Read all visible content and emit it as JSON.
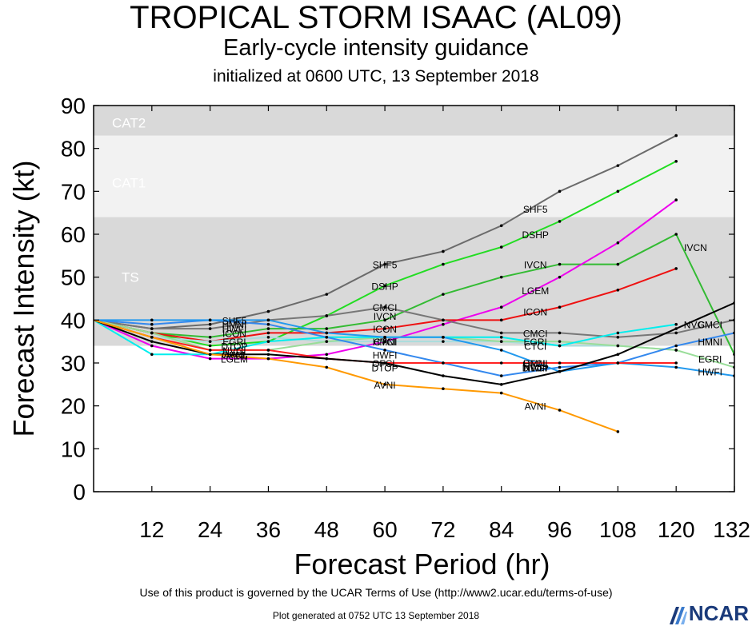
{
  "header": {
    "title": "TROPICAL STORM ISAAC (AL09)",
    "subtitle": "Early-cycle intensity guidance",
    "init": "initialized at 0600 UTC, 13 September 2018"
  },
  "footer": {
    "terms": "Use of this product is governed by the UCAR Terms of Use (http://www2.ucar.edu/terms-of-use)",
    "generated": "Plot generated at 0752 UTC   13 September 2018",
    "logo": "NCAR"
  },
  "chart_data": {
    "type": "line",
    "xlabel": "Forecast Period (hr)",
    "ylabel": "Forecast Intensity (kt)",
    "xlim": [
      0,
      132
    ],
    "ylim": [
      0,
      90
    ],
    "xticks": [
      12,
      24,
      36,
      48,
      60,
      72,
      84,
      96,
      108,
      120,
      132
    ],
    "yticks": [
      0,
      10,
      20,
      30,
      40,
      50,
      60,
      70,
      80,
      90
    ],
    "bands": [
      {
        "label": "TS",
        "from": 34,
        "to": 64,
        "color": "#d9d9d9"
      },
      {
        "label": "CAT1",
        "from": 64,
        "to": 83,
        "color": "#f2f2f2"
      },
      {
        "label": "CAT2",
        "from": 83,
        "to": 90,
        "color": "#d9d9d9"
      }
    ],
    "series": [
      {
        "name": "SHF5",
        "color": "#6b6b6b",
        "x": [
          0,
          12,
          24,
          36,
          48,
          60,
          72,
          84,
          96,
          108,
          120
        ],
        "y": [
          40,
          38,
          39,
          42,
          46,
          53,
          56,
          62,
          70,
          76,
          83
        ]
      },
      {
        "name": "DSHP",
        "color": "#22dd22",
        "x": [
          0,
          12,
          24,
          36,
          48,
          60,
          72,
          84,
          96,
          108,
          120
        ],
        "y": [
          40,
          37,
          34,
          35,
          41,
          48,
          53,
          57,
          63,
          70,
          77
        ]
      },
      {
        "name": "IVCN",
        "color": "#33bb33",
        "x": [
          0,
          12,
          24,
          36,
          48,
          60,
          72,
          84,
          96,
          108,
          120,
          132
        ],
        "y": [
          40,
          37,
          36,
          38,
          38,
          40,
          46,
          50,
          53,
          53,
          60,
          32
        ]
      },
      {
        "name": "LGEM",
        "color": "#ee00ee",
        "x": [
          0,
          12,
          24,
          36,
          48,
          60,
          72,
          84,
          96,
          108,
          120
        ],
        "y": [
          40,
          34,
          31,
          31,
          32,
          35,
          39,
          43,
          50,
          58,
          68
        ]
      },
      {
        "name": "ICON",
        "color": "#ee1111",
        "x": [
          0,
          12,
          24,
          36,
          48,
          60,
          72,
          84,
          96,
          108,
          120
        ],
        "y": [
          40,
          37,
          35,
          37,
          37,
          38,
          40,
          40,
          43,
          47,
          52
        ]
      },
      {
        "name": "CMCI",
        "color": "#777777",
        "x": [
          0,
          12,
          24,
          36,
          48,
          60,
          72,
          84,
          96,
          108,
          120,
          132
        ],
        "y": [
          40,
          38,
          38,
          40,
          41,
          43,
          40,
          37,
          37,
          36,
          37,
          40
        ]
      },
      {
        "name": "CTCI",
        "color": "#aadddd",
        "x": [
          0,
          12,
          24,
          36,
          48,
          60,
          72,
          84,
          96,
          108,
          120
        ],
        "y": [
          40,
          36,
          35,
          36,
          35,
          35,
          35,
          35,
          34,
          34,
          33
        ]
      },
      {
        "name": "EGRI",
        "color": "#99dd99",
        "x": [
          0,
          12,
          24,
          36,
          48,
          60,
          72,
          84,
          96,
          108,
          120,
          132
        ],
        "y": [
          40,
          37,
          33,
          33,
          35,
          36,
          36,
          35,
          35,
          34,
          33,
          29
        ]
      },
      {
        "name": "NVGI",
        "color": "#00eeee",
        "x": [
          0,
          12,
          24,
          36,
          48,
          60,
          72,
          84,
          96,
          108,
          120
        ],
        "y": [
          40,
          32,
          32,
          35,
          36,
          36,
          36,
          36,
          34,
          37,
          39
        ]
      },
      {
        "name": "HMNI",
        "color": "#3388ee",
        "x": [
          0,
          12,
          24,
          36,
          48,
          60,
          72,
          84,
          96,
          108,
          120,
          132
        ],
        "y": [
          40,
          39,
          40,
          39,
          36,
          33,
          30,
          27,
          29,
          30,
          34,
          37
        ]
      },
      {
        "name": "HWFI",
        "color": "#2299ee",
        "x": [
          0,
          12,
          24,
          36,
          48,
          60,
          72,
          84,
          96,
          108,
          120,
          132
        ],
        "y": [
          40,
          40,
          40,
          40,
          37,
          36,
          36,
          33,
          28,
          30,
          29,
          27
        ]
      },
      {
        "name": "OFCL",
        "color": "#ff2222",
        "x": [
          0,
          12,
          24,
          36,
          48,
          60,
          72,
          84,
          96,
          108,
          120
        ],
        "y": [
          40,
          36,
          33,
          33,
          31,
          30,
          30,
          30,
          30,
          30,
          30
        ]
      },
      {
        "name": "DTOP",
        "color": "#000000",
        "x": [
          0,
          12,
          24,
          36,
          48,
          60,
          72,
          84,
          96,
          108,
          120,
          132
        ],
        "y": [
          40,
          35,
          32,
          32,
          31,
          30,
          27,
          25,
          28,
          32,
          38,
          44
        ]
      },
      {
        "name": "AVNI",
        "color": "#ff9900",
        "x": [
          0,
          12,
          24,
          36,
          48,
          60,
          72,
          84,
          96,
          108
        ],
        "y": [
          40,
          36,
          32,
          31,
          29,
          25,
          24,
          23,
          19,
          14
        ]
      }
    ],
    "line_labels": [
      {
        "text": "SHF5",
        "x": 29,
        "y": 40
      },
      {
        "text": "SHF5",
        "x": 60,
        "y": 53
      },
      {
        "text": "SHF5",
        "x": 91,
        "y": 66
      },
      {
        "text": "DSHP",
        "x": 60,
        "y": 48
      },
      {
        "text": "DSHP",
        "x": 91,
        "y": 60
      },
      {
        "text": "IVCN",
        "x": 60,
        "y": 41
      },
      {
        "text": "IVCN",
        "x": 91,
        "y": 53
      },
      {
        "text": "IVCN",
        "x": 124,
        "y": 57
      },
      {
        "text": "LGEM",
        "x": 29,
        "y": 31
      },
      {
        "text": "LGEM",
        "x": 91,
        "y": 47
      },
      {
        "text": "ICON",
        "x": 29,
        "y": 37
      },
      {
        "text": "ICON",
        "x": 60,
        "y": 38
      },
      {
        "text": "ICON",
        "x": 91,
        "y": 42
      },
      {
        "text": "CMCI",
        "x": 60,
        "y": 43
      },
      {
        "text": "CMCI",
        "x": 91,
        "y": 37
      },
      {
        "text": "CMCI",
        "x": 127,
        "y": 39
      },
      {
        "text": "CTCI",
        "x": 60,
        "y": 35
      },
      {
        "text": "CTCI",
        "x": 91,
        "y": 34
      },
      {
        "text": "EGRI",
        "x": 29,
        "y": 35
      },
      {
        "text": "EGRI",
        "x": 91,
        "y": 35
      },
      {
        "text": "EGRI",
        "x": 127,
        "y": 31
      },
      {
        "text": "NVGI",
        "x": 29,
        "y": 33
      },
      {
        "text": "NVGI",
        "x": 91,
        "y": 29
      },
      {
        "text": "NVGI",
        "x": 124,
        "y": 39
      },
      {
        "text": "HMNI",
        "x": 29,
        "y": 39
      },
      {
        "text": "HMNI",
        "x": 60,
        "y": 35
      },
      {
        "text": "HMNI",
        "x": 91,
        "y": 30
      },
      {
        "text": "HMNI",
        "x": 127,
        "y": 35
      },
      {
        "text": "HWFI",
        "x": 29,
        "y": 38
      },
      {
        "text": "HWFI",
        "x": 60,
        "y": 32
      },
      {
        "text": "HWFI",
        "x": 91,
        "y": 29
      },
      {
        "text": "HWFI",
        "x": 127,
        "y": 28
      },
      {
        "text": "OFCL",
        "x": 29,
        "y": 32
      },
      {
        "text": "OFCL",
        "x": 60,
        "y": 30
      },
      {
        "text": "OFCL",
        "x": 91,
        "y": 30
      },
      {
        "text": "DTOP",
        "x": 29,
        "y": 34
      },
      {
        "text": "DTOP",
        "x": 60,
        "y": 29
      },
      {
        "text": "DTOP",
        "x": 91,
        "y": 29
      },
      {
        "text": "AVNI",
        "x": 29,
        "y": 32
      },
      {
        "text": "AVNI",
        "x": 60,
        "y": 25
      },
      {
        "text": "AVNI",
        "x": 91,
        "y": 20
      }
    ]
  }
}
